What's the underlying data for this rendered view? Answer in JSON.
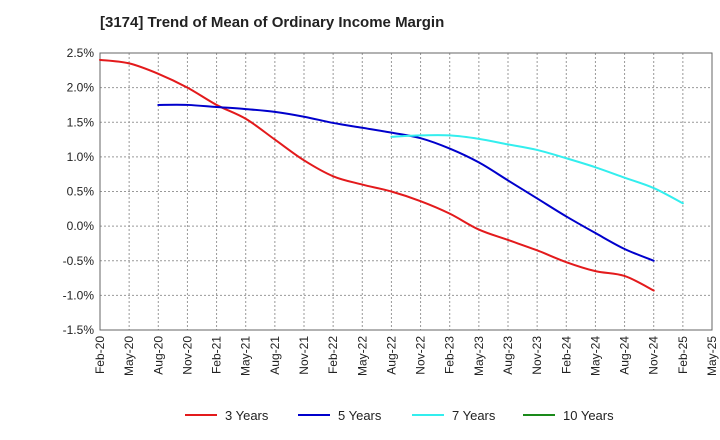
{
  "chart_data": {
    "type": "line",
    "title": "[3174]  Trend of Mean of Ordinary Income Margin",
    "xlabel": "",
    "ylabel": "",
    "categories": [
      "Feb-20",
      "May-20",
      "Aug-20",
      "Nov-20",
      "Feb-21",
      "May-21",
      "Aug-21",
      "Nov-21",
      "Feb-22",
      "May-22",
      "Aug-22",
      "Nov-22",
      "Feb-23",
      "May-23",
      "Aug-23",
      "Nov-23",
      "Feb-24",
      "May-24",
      "Aug-24",
      "Nov-24",
      "Feb-25",
      "May-25"
    ],
    "y_ticks": [
      "2.5%",
      "2.0%",
      "1.5%",
      "1.0%",
      "0.5%",
      "0.0%",
      "-0.5%",
      "-1.0%",
      "-1.5%"
    ],
    "ylim": [
      -1.5,
      2.5
    ],
    "grid": true,
    "legend_position": "bottom",
    "series": [
      {
        "name": "3 Years",
        "color": "#e31a1c",
        "values": [
          2.4,
          2.35,
          2.2,
          2.0,
          1.75,
          1.55,
          1.25,
          0.95,
          0.72,
          0.6,
          0.5,
          0.36,
          0.18,
          -0.05,
          -0.2,
          -0.35,
          -0.52,
          -0.65,
          -0.72,
          -0.93,
          null,
          null
        ]
      },
      {
        "name": "5 Years",
        "color": "#0000cc",
        "values": [
          null,
          null,
          1.75,
          1.75,
          1.72,
          1.69,
          1.65,
          1.58,
          1.49,
          1.42,
          1.35,
          1.27,
          1.12,
          0.92,
          0.66,
          0.4,
          0.14,
          -0.1,
          -0.33,
          -0.5,
          null,
          null
        ]
      },
      {
        "name": "7 Years",
        "color": "#33eeee",
        "values": [
          null,
          null,
          null,
          null,
          null,
          null,
          null,
          null,
          null,
          null,
          1.29,
          1.31,
          1.31,
          1.26,
          1.18,
          1.1,
          0.98,
          0.85,
          0.7,
          0.55,
          0.33,
          null
        ]
      },
      {
        "name": "10 Years",
        "color": "#1a8a1a",
        "values": [
          null,
          null,
          null,
          null,
          null,
          null,
          null,
          null,
          null,
          null,
          null,
          null,
          null,
          null,
          null,
          null,
          null,
          null,
          null,
          null,
          null,
          null
        ]
      }
    ]
  }
}
